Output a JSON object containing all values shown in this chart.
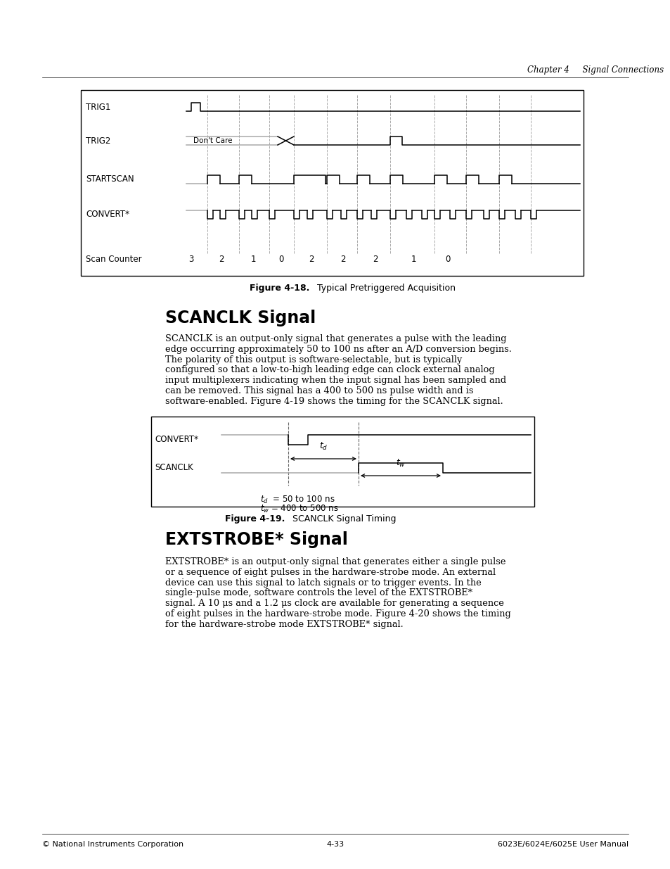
{
  "page_bg": "#ffffff",
  "header_text": "Chapter 4     Signal Connections",
  "footer_left": "© National Instruments Corporation",
  "footer_center": "4-33",
  "footer_right": "6023E/6024E/6025E User Manual",
  "fig18_title_bold": "Figure 4-18.",
  "fig18_title_rest": "  Typical Pretriggered Acquisition",
  "fig18_signals": [
    "TRIG1",
    "TRIG2",
    "STARTSCAN",
    "CONVERT*",
    "Scan Counter"
  ],
  "fig18_scan_counter_values": [
    "3",
    "2",
    "1",
    "0",
    "2",
    "2",
    "2",
    "1",
    "0"
  ],
  "fig18_dont_care": "Don't Care",
  "section1_title": "SCANCLK Signal",
  "section1_body": "SCANCLK is an output-only signal that generates a pulse with the leading\nedge occurring approximately 50 to 100 ns after an A/D conversion begins.\nThe polarity of this output is software-selectable, but is typically\nconfigured so that a low-to-high leading edge can clock external analog\ninput multiplexers indicating when the input signal has been sampled and\ncan be removed. This signal has a 400 to 500 ns pulse width and is\nsoftware-enabled. Figure 4-19 shows the timing for the SCANCLK signal.",
  "fig19_title_bold": "Figure 4-19.",
  "fig19_title_rest": "  SCANCLK Signal Timing",
  "fig19_signals": [
    "CONVERT*",
    "SCANCLK"
  ],
  "fig19_annotation1": "tₕ  = 50 to 100 ns",
  "fig19_annotation2": "tᵤ = 400 to 500 ns",
  "section2_title": "EXTSTROBE* Signal",
  "section2_body": "EXTSTROBE* is an output-only signal that generates either a single pulse\nor a sequence of eight pulses in the hardware-strobe mode. An external\ndevice can use this signal to latch signals or to trigger events. In the\nsingle-pulse mode, software controls the level of the EXTSTROBE*\nsignal. A 10 μs and a 1.2 μs clock are available for generating a sequence\nof eight pulses in the hardware-strobe mode. Figure 4-20 shows the timing\nfor the hardware-strobe mode EXTSTROBE* signal."
}
